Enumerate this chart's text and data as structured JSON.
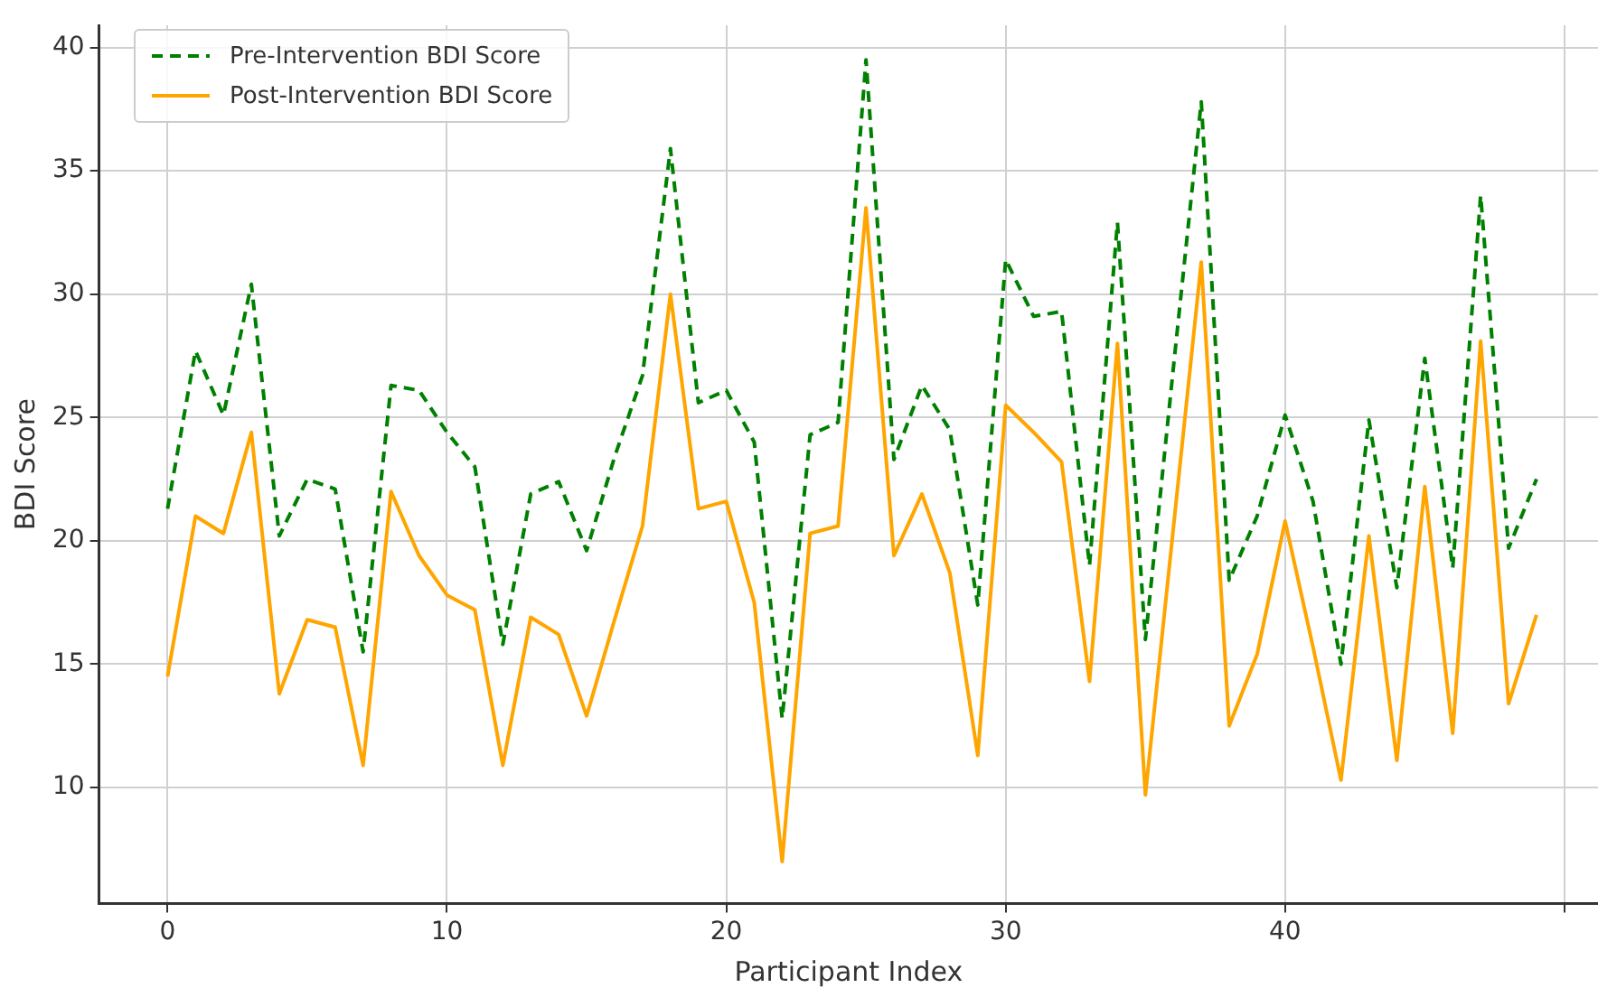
{
  "chart_data": {
    "type": "line",
    "xlabel": "Participant Index",
    "ylabel": "BDI Score",
    "x": [
      0,
      1,
      2,
      3,
      4,
      5,
      6,
      7,
      8,
      9,
      10,
      11,
      12,
      13,
      14,
      15,
      16,
      17,
      18,
      19,
      20,
      21,
      22,
      23,
      24,
      25,
      26,
      27,
      28,
      29,
      30,
      31,
      32,
      33,
      34,
      35,
      36,
      37,
      38,
      39,
      40,
      41,
      42,
      43,
      44,
      45,
      46,
      47,
      48,
      49
    ],
    "series": [
      {
        "name": "Pre-Intervention BDI Score",
        "color": "#008000",
        "line_style": "dashed",
        "values": [
          21.3,
          27.7,
          25.1,
          30.4,
          20.2,
          22.5,
          22.1,
          15.5,
          26.3,
          26.1,
          24.4,
          23.0,
          15.8,
          21.9,
          22.4,
          19.6,
          23.4,
          26.7,
          35.9,
          25.6,
          26.1,
          24.0,
          12.8,
          24.3,
          24.8,
          39.5,
          23.3,
          26.3,
          24.5,
          17.4,
          31.4,
          29.1,
          29.3,
          19.0,
          32.9,
          16.0,
          27.0,
          37.8,
          18.4,
          21.0,
          25.1,
          21.6,
          15.0,
          24.9,
          18.1,
          27.4,
          18.9,
          34.0,
          19.7,
          22.5
        ]
      },
      {
        "name": "Post-Intervention BDI Score",
        "color": "#ffa500",
        "line_style": "solid",
        "values": [
          14.5,
          21.0,
          20.3,
          24.4,
          13.8,
          16.8,
          16.5,
          10.9,
          22.0,
          19.4,
          17.8,
          17.2,
          10.9,
          16.9,
          16.2,
          12.9,
          16.8,
          20.6,
          30.0,
          21.3,
          21.6,
          17.5,
          7.0,
          20.3,
          20.6,
          33.5,
          19.4,
          21.9,
          18.7,
          11.3,
          25.5,
          24.4,
          23.2,
          14.3,
          28.0,
          9.7,
          20.5,
          31.3,
          12.5,
          15.4,
          20.8,
          15.7,
          10.3,
          20.2,
          11.1,
          22.2,
          12.2,
          28.1,
          13.4,
          17.0
        ]
      }
    ],
    "xlim": [
      -2.45,
      51.2
    ],
    "xticks": [
      0,
      10,
      20,
      30,
      40,
      {
        "value": 50,
        "label": null
      }
    ],
    "ylim": [
      5.3,
      40.9
    ],
    "yticks": [
      10,
      15,
      20,
      25,
      30,
      35,
      40
    ],
    "grid": true,
    "legend": "top left",
    "marker": "none"
  }
}
